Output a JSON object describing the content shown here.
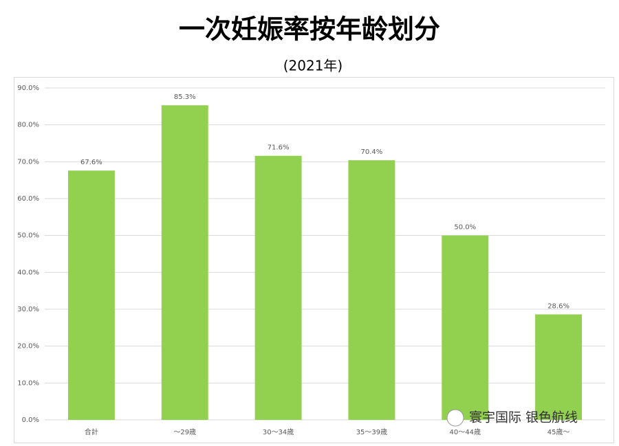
{
  "chart_data": {
    "type": "bar",
    "title": "一次妊娠率按年龄划分",
    "subtitle": "(2021年)",
    "categories": [
      "合計",
      "〜29歳",
      "30〜34歳",
      "35〜39歳",
      "40〜44歳",
      "45歳〜"
    ],
    "values": [
      67.6,
      85.3,
      71.6,
      70.4,
      50.0,
      28.6
    ],
    "value_labels": [
      "67.6%",
      "85.3%",
      "71.6%",
      "70.4%",
      "50.0%",
      "28.6%"
    ],
    "color": "#92d050",
    "ylim": [
      0,
      90
    ],
    "yticks": [
      {
        "value": 0,
        "label": "0.0%"
      },
      {
        "value": 10,
        "label": "10.0%"
      },
      {
        "value": 20,
        "label": "20.0%"
      },
      {
        "value": 30,
        "label": "30.0%"
      },
      {
        "value": 40,
        "label": "40.0%"
      },
      {
        "value": 50,
        "label": "50.0%"
      },
      {
        "value": 60,
        "label": "60.0%"
      },
      {
        "value": 70,
        "label": "70.0%"
      },
      {
        "value": 80,
        "label": "80.0%"
      },
      {
        "value": 90,
        "label": "90.0%"
      }
    ],
    "grid": true,
    "watermark": "寰宇国际 银色航线"
  }
}
